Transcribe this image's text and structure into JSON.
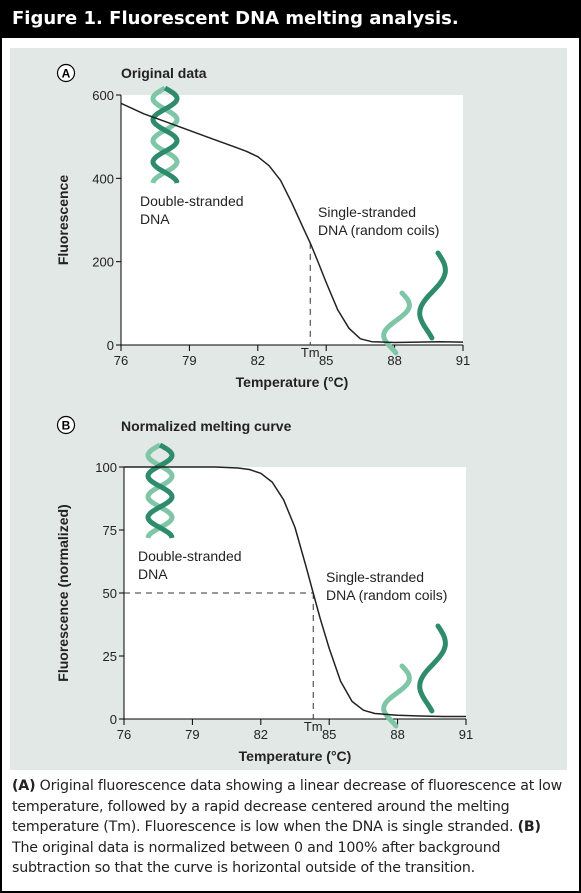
{
  "figure_title": "Figure 1. Fluorescent DNA melting analysis.",
  "caption": {
    "a_label": "(A)",
    "a_text": " Original fluorescence data showing a linear decrease of fluorescence at low temperature, followed by a rapid decrease centered around the melting temperature (Tm). Fluorescence is low when the DNA is single stranded. ",
    "b_label": "(B)",
    "b_text": " The original data is normalized between 0 and 100% after background subtraction so that the curve is horizontal outside of the transition."
  },
  "colors": {
    "panel_bg": "#e2e8e6",
    "helix_dark": "#2e8b6b",
    "helix_light": "#7fc6a7",
    "curve": "#222222"
  },
  "chart_data": [
    {
      "type": "line",
      "panel_label": "A",
      "title": "Original data",
      "xlabel": "Temperature (°C)",
      "ylabel": "Fluorescence",
      "xlim": [
        76,
        91
      ],
      "ylim": [
        0,
        600
      ],
      "xticks": [
        76,
        79,
        82,
        85,
        88,
        91
      ],
      "yticks": [
        0,
        200,
        400,
        600
      ],
      "tm_label": "Tm",
      "tm_x": 84.3,
      "annotations": [
        "Double-stranded DNA",
        "Single-stranded DNA (random coils)"
      ],
      "annotation_lines": [
        [
          "Double-stranded",
          "DNA"
        ],
        [
          "Single-stranded",
          "DNA (random coils)"
        ]
      ],
      "icons": [
        "double-helix-icon",
        "single-strand-icon"
      ],
      "x": [
        76,
        77,
        78,
        79,
        80,
        81,
        81.5,
        82,
        82.5,
        83,
        83.5,
        84,
        84.3,
        84.6,
        85,
        85.5,
        86,
        86.5,
        87,
        88,
        89,
        90,
        91
      ],
      "y": [
        580,
        555,
        535,
        515,
        495,
        475,
        465,
        452,
        430,
        395,
        340,
        280,
        245,
        205,
        150,
        85,
        40,
        15,
        8,
        6,
        7,
        8,
        7
      ]
    },
    {
      "type": "line",
      "panel_label": "B",
      "title": "Normalized melting curve",
      "xlabel": "Temperature (°C)",
      "ylabel": "Fluorescence (normalized)",
      "xlim": [
        76,
        91
      ],
      "ylim": [
        0,
        100
      ],
      "xticks": [
        76,
        79,
        82,
        85,
        88,
        91
      ],
      "yticks": [
        0,
        25,
        50,
        75,
        100
      ],
      "tm_label": "Tm",
      "tm_x": 84.3,
      "tm_y": 50,
      "annotations": [
        "Double-stranded DNA",
        "Single-stranded DNA (random coils)"
      ],
      "annotation_lines": [
        [
          "Double-stranded",
          "DNA"
        ],
        [
          "Single-stranded",
          "DNA (random coils)"
        ]
      ],
      "icons": [
        "double-helix-icon",
        "single-strand-icon"
      ],
      "x": [
        76,
        77,
        78,
        79,
        80,
        81,
        81.5,
        82,
        82.5,
        83,
        83.5,
        84,
        84.3,
        84.6,
        85,
        85.5,
        86,
        86.5,
        87,
        88,
        89,
        90,
        91
      ],
      "y": [
        100,
        100,
        100,
        100,
        100,
        99.6,
        99,
        97.5,
        94,
        87,
        76,
        60,
        50,
        40,
        28,
        15,
        7,
        3.5,
        2.2,
        1.5,
        1.2,
        1,
        1
      ]
    }
  ]
}
